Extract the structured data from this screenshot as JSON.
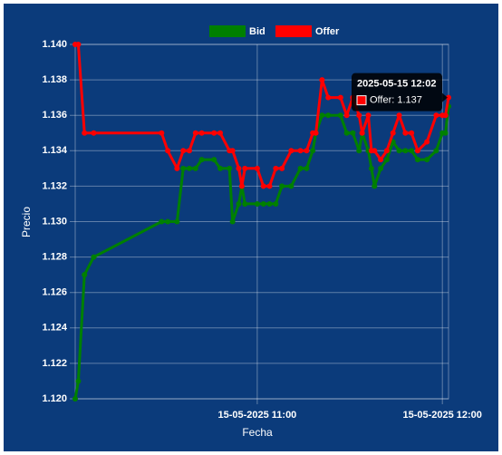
{
  "chart_data": {
    "type": "line",
    "x_label": "Fecha",
    "y_label": "Precio",
    "x": [
      "2025-05-15 10:01",
      "2025-05-15 10:02",
      "2025-05-15 10:04",
      "2025-05-15 10:07",
      "2025-05-15 10:29",
      "2025-05-15 10:31",
      "2025-05-15 10:34",
      "2025-05-15 10:36",
      "2025-05-15 10:38",
      "2025-05-15 10:40",
      "2025-05-15 10:42",
      "2025-05-15 10:46",
      "2025-05-15 10:48",
      "2025-05-15 10:51",
      "2025-05-15 10:52",
      "2025-05-15 10:54",
      "2025-05-15 10:55",
      "2025-05-15 10:56",
      "2025-05-15 11:00",
      "2025-05-15 11:02",
      "2025-05-15 11:04",
      "2025-05-15 11:06",
      "2025-05-15 11:08",
      "2025-05-15 11:11",
      "2025-05-15 11:14",
      "2025-05-15 11:16",
      "2025-05-15 11:18",
      "2025-05-15 11:19",
      "2025-05-15 11:21",
      "2025-05-15 11:23",
      "2025-05-15 11:27",
      "2025-05-15 11:29",
      "2025-05-15 11:31",
      "2025-05-15 11:33",
      "2025-05-15 11:34",
      "2025-05-15 11:36",
      "2025-05-15 11:37",
      "2025-05-15 11:38",
      "2025-05-15 11:40",
      "2025-05-15 11:42",
      "2025-05-15 11:44",
      "2025-05-15 11:46",
      "2025-05-15 11:48",
      "2025-05-15 11:50",
      "2025-05-15 11:52",
      "2025-05-15 11:55",
      "2025-05-15 11:58",
      "2025-05-15 12:00",
      "2025-05-15 12:01",
      "2025-05-15 12:02"
    ],
    "series": [
      {
        "name": "Bid",
        "color": "#008000",
        "values": [
          1.12,
          1.121,
          1.127,
          1.128,
          1.13,
          1.13,
          1.13,
          1.133,
          1.133,
          1.133,
          1.1335,
          1.1335,
          1.133,
          1.133,
          1.13,
          1.131,
          1.132,
          1.131,
          1.131,
          1.131,
          1.131,
          1.131,
          1.132,
          1.132,
          1.133,
          1.133,
          1.134,
          1.135,
          1.136,
          1.136,
          1.136,
          1.135,
          1.135,
          1.134,
          1.135,
          1.134,
          1.133,
          1.132,
          1.133,
          1.1335,
          1.1345,
          1.134,
          1.134,
          1.134,
          1.1335,
          1.1335,
          1.134,
          1.135,
          1.135,
          1.1365
        ]
      },
      {
        "name": "Offer",
        "color": "#ff0000",
        "values": [
          1.14,
          1.14,
          1.135,
          1.135,
          1.135,
          1.134,
          1.133,
          1.134,
          1.134,
          1.135,
          1.135,
          1.135,
          1.135,
          1.134,
          1.134,
          1.133,
          1.132,
          1.133,
          1.133,
          1.132,
          1.132,
          1.133,
          1.133,
          1.134,
          1.134,
          1.134,
          1.135,
          1.135,
          1.138,
          1.137,
          1.137,
          1.136,
          1.137,
          1.136,
          1.135,
          1.136,
          1.134,
          1.134,
          1.1335,
          1.134,
          1.135,
          1.136,
          1.135,
          1.135,
          1.134,
          1.1345,
          1.136,
          1.136,
          1.136,
          1.137
        ]
      }
    ],
    "xlim": [
      "2025-05-15 10:01",
      "2025-05-15 12:02"
    ],
    "xticks": [
      {
        "value": "2025-05-15 11:00",
        "label": "15-05-2025 11:00"
      },
      {
        "value": "2025-05-15 12:00",
        "label": "15-05-2025 12:00"
      }
    ],
    "ylim": [
      1.12,
      1.14
    ],
    "yticks": [
      {
        "value": 1.12,
        "label": "1.120"
      },
      1.122,
      1.124,
      1.126,
      1.128,
      {
        "value": 1.13,
        "label": "1.130"
      },
      1.132,
      1.134,
      1.136,
      1.138,
      {
        "value": 1.14,
        "label": "1.140"
      }
    ],
    "grid": true,
    "legend": "top",
    "tooltip": {
      "label": "Offer: 1.137"
    }
  }
}
